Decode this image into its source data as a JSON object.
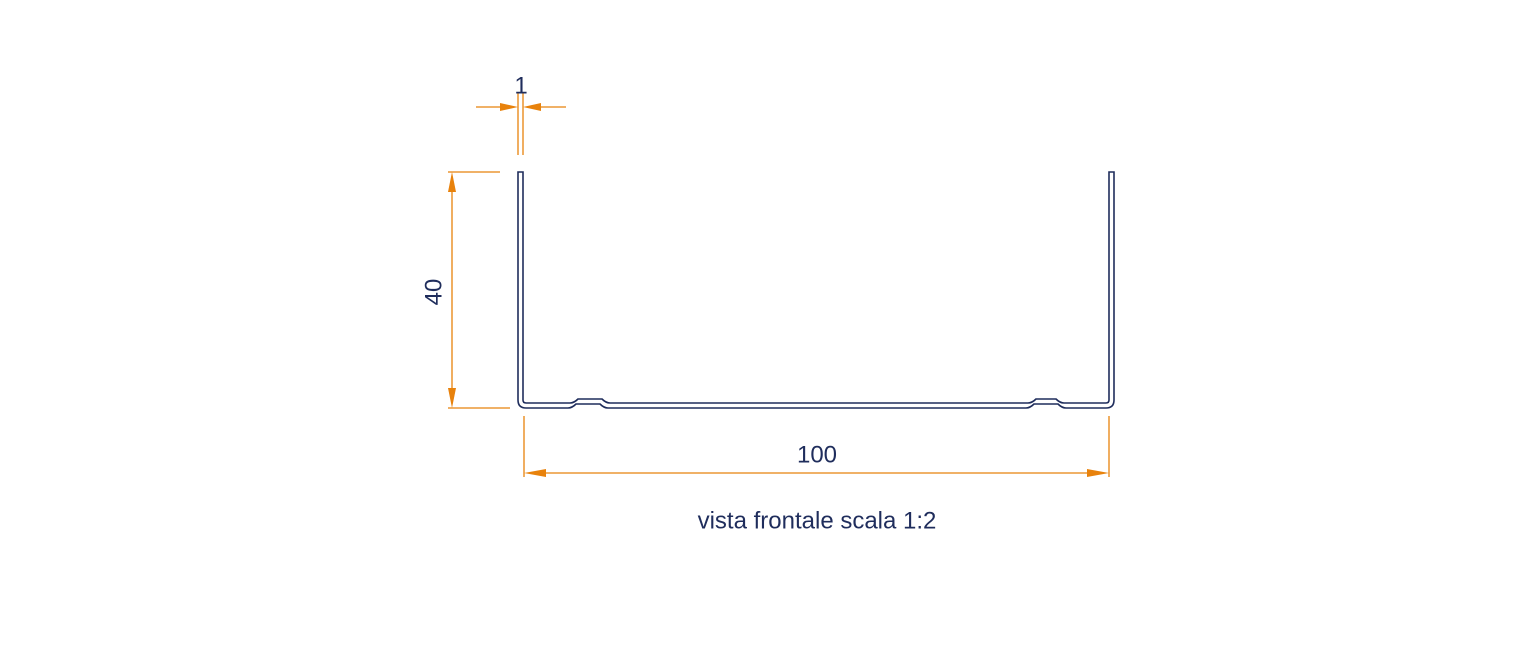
{
  "dimensions": {
    "thickness": "1",
    "height": "40",
    "width": "100"
  },
  "caption": "vista frontale scala 1:2"
}
